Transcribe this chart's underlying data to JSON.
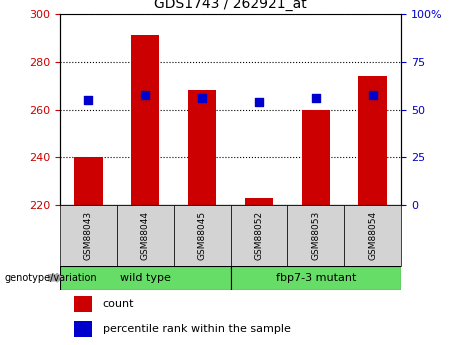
{
  "title": "GDS1743 / 262921_at",
  "categories": [
    "GSM88043",
    "GSM88044",
    "GSM88045",
    "GSM88052",
    "GSM88053",
    "GSM88054"
  ],
  "count_values": [
    240,
    291,
    268,
    223,
    260,
    274
  ],
  "percentile_values": [
    264,
    266,
    265,
    263,
    265,
    266
  ],
  "baseline": 220,
  "ylim_left": [
    220,
    300
  ],
  "ylim_right": [
    0,
    100
  ],
  "yticks_left": [
    220,
    240,
    260,
    280,
    300
  ],
  "yticks_right": [
    0,
    25,
    50,
    75,
    100
  ],
  "bar_color": "#cc0000",
  "dot_color": "#0000cc",
  "group1_label": "wild type",
  "group2_label": "fbp7-3 mutant",
  "group1_indices": [
    0,
    1,
    2
  ],
  "group2_indices": [
    3,
    4,
    5
  ],
  "group_bg_color": "#66dd66",
  "genotype_label": "genotype/variation",
  "legend_count": "count",
  "legend_percentile": "percentile rank within the sample",
  "tick_label_color_left": "#cc0000",
  "tick_label_color_right": "#0000cc",
  "grid_color": "#000000",
  "sample_cell_color": "#d3d3d3",
  "bar_width": 0.5,
  "dot_size": 35
}
